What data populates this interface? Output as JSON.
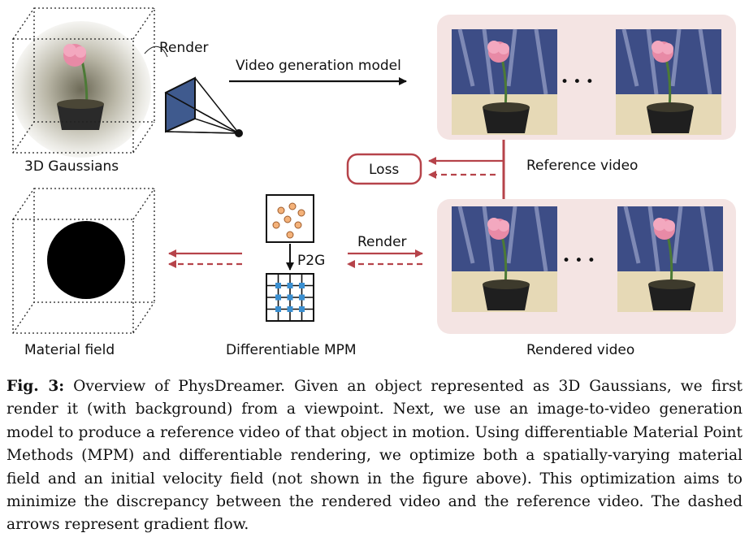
{
  "labels": {
    "render_top": "Render",
    "video_gen": "Video generation model",
    "gaussians": "3D Gaussians",
    "loss": "Loss",
    "reference_video": "Reference video",
    "p2g": "P2G",
    "render_mid": "Render",
    "material_field": "Material field",
    "diff_mpm": "Differentiable MPM",
    "rendered_video": "Rendered video",
    "ellipsis": "• • •"
  },
  "caption": {
    "fig": "Fig. 3:",
    "text": "Overview of PhysDreamer. Given an object represented as 3D Gaussians, we first render it (with background) from a viewpoint. Next, we use an image-to-video generation model to produce a reference video of that object in motion. Using differentiable Material Point Methods (MPM) and differentiable rendering, we optimize both a spatially-varying material field and an initial velocity field (not shown in the figure above). This optimization aims to minimize the discrepancy between the rendered video and the reference video. The dashed arrows represent gradient flow."
  },
  "colors": {
    "accent": "#b6434a",
    "panel": "#f4e4e3",
    "grid_node": "#3a8fd1",
    "particle": "#f4b27a"
  }
}
